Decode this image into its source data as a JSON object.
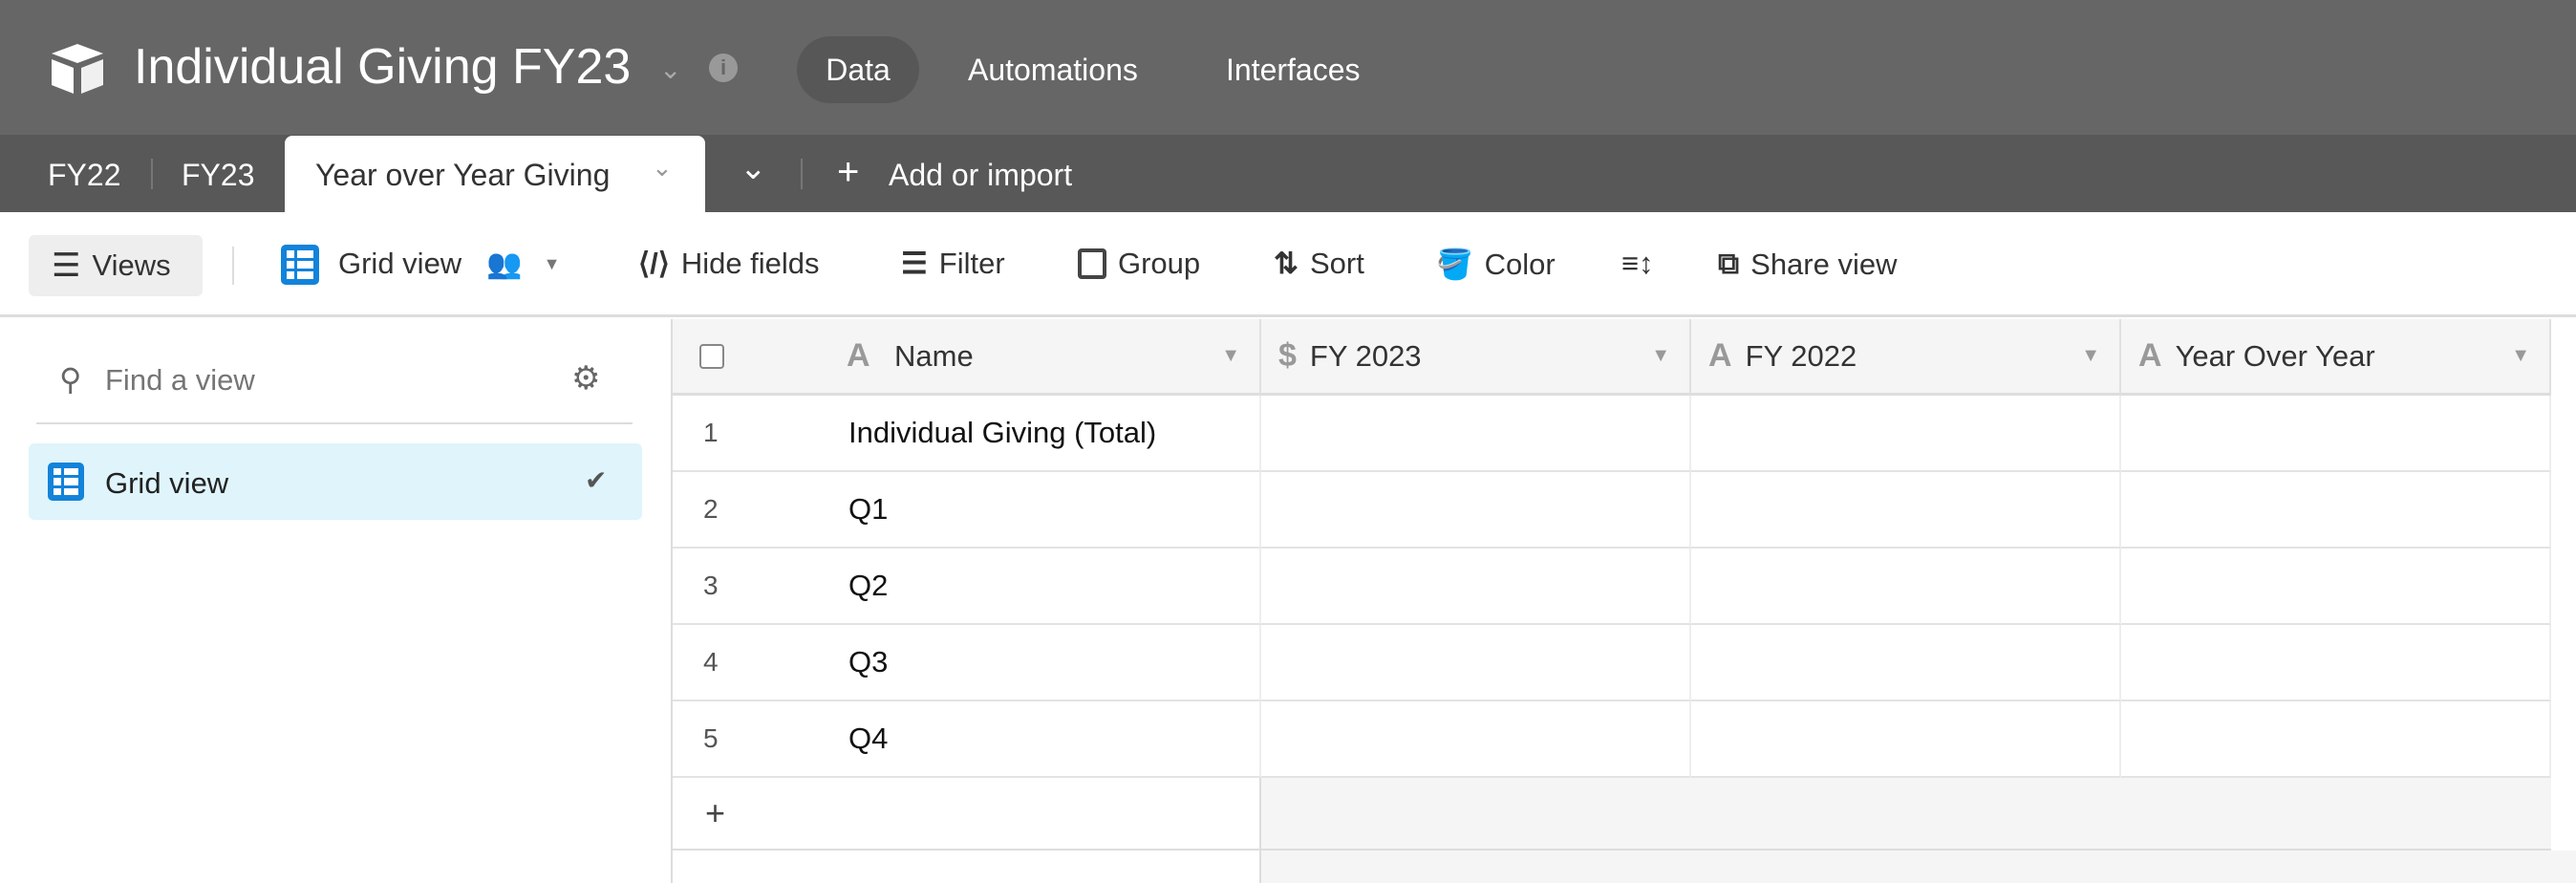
{
  "header": {
    "title": "Individual Giving FY23",
    "nav": [
      {
        "label": "Data",
        "active": true
      },
      {
        "label": "Automations"
      },
      {
        "label": "Interfaces"
      }
    ]
  },
  "tables": {
    "items": [
      {
        "label": "FY22"
      },
      {
        "label": "FY23"
      },
      {
        "label": "Year over Year Giving",
        "active": true
      }
    ],
    "add_label": "Add or import"
  },
  "toolbar": {
    "views": "Views",
    "view_name": "Grid view",
    "hide_fields": "Hide fields",
    "filter": "Filter",
    "group": "Group",
    "sort": "Sort",
    "color": "Color",
    "share": "Share view"
  },
  "sidebar": {
    "search_placeholder": "Find a view",
    "views": [
      {
        "label": "Grid view",
        "selected": true
      }
    ]
  },
  "grid": {
    "columns": [
      {
        "label": "Name",
        "type": "text"
      },
      {
        "label": "FY 2023",
        "type": "currency"
      },
      {
        "label": "FY 2022",
        "type": "text"
      },
      {
        "label": "Year Over Year",
        "type": "text"
      }
    ],
    "rows": [
      {
        "n": "1",
        "name": "Individual Giving (Total)"
      },
      {
        "n": "2",
        "name": "Q1"
      },
      {
        "n": "3",
        "name": "Q2"
      },
      {
        "n": "4",
        "name": "Q3"
      },
      {
        "n": "5",
        "name": "Q4"
      }
    ],
    "add_row": "+"
  },
  "colors": {
    "header": "#666666",
    "tabbar": "#585858",
    "accent": "#1283da",
    "selected_view": "#dff4fb"
  }
}
